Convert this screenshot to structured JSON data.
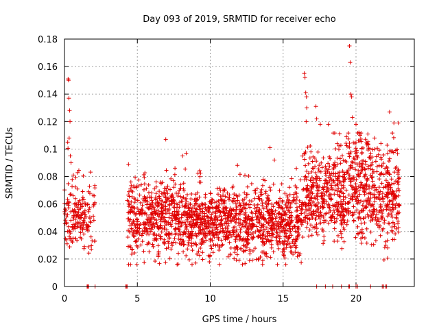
{
  "chart_data": {
    "type": "scatter",
    "title": "Day 093 of 2019, SRMTID for receiver echo",
    "xlabel": "GPS time / hours",
    "ylabel": "SRMTID / TECUs",
    "xlim": [
      0,
      24
    ],
    "ylim": [
      0,
      0.18
    ],
    "xticks": [
      0,
      5,
      10,
      15,
      20
    ],
    "xtick_labels": [
      "0",
      "5",
      "10",
      "15",
      "20"
    ],
    "yticks": [
      0,
      0.02,
      0.04,
      0.06,
      0.08,
      0.1,
      0.12,
      0.14,
      0.16,
      0.18
    ],
    "ytick_labels": [
      "0",
      "0.02",
      "0.04",
      "0.06",
      "0.08",
      "0.1",
      "0.12",
      "0.14",
      "0.16",
      "0.18"
    ],
    "grid": true,
    "marker": "+",
    "color": "#e00000",
    "series": [
      {
        "name": "SRMTID",
        "segments": [
          {
            "start": 0.0,
            "end": 2.1,
            "mean": 0.05,
            "spread": 0.012,
            "count": 180
          },
          {
            "start": 4.3,
            "end": 8.5,
            "mean": 0.05,
            "spread": 0.013,
            "count": 520
          },
          {
            "start": 8.5,
            "end": 12.0,
            "mean": 0.047,
            "spread": 0.012,
            "count": 480
          },
          {
            "start": 12.0,
            "end": 16.3,
            "mean": 0.045,
            "spread": 0.013,
            "count": 560
          },
          {
            "start": 16.3,
            "end": 19.3,
            "mean": 0.065,
            "spread": 0.016,
            "count": 400
          },
          {
            "start": 19.3,
            "end": 21.0,
            "mean": 0.075,
            "spread": 0.018,
            "count": 240
          },
          {
            "start": 21.0,
            "end": 23.0,
            "mean": 0.065,
            "spread": 0.017,
            "count": 260
          }
        ],
        "outliers": [
          {
            "x": 0.25,
            "y": 0.151
          },
          {
            "x": 0.28,
            "y": 0.15
          },
          {
            "x": 0.3,
            "y": 0.137
          },
          {
            "x": 0.35,
            "y": 0.128
          },
          {
            "x": 0.38,
            "y": 0.12
          },
          {
            "x": 0.32,
            "y": 0.108
          },
          {
            "x": 0.22,
            "y": 0.105
          },
          {
            "x": 0.4,
            "y": 0.095
          },
          {
            "x": 0.45,
            "y": 0.09
          },
          {
            "x": 6.95,
            "y": 0.107
          },
          {
            "x": 8.1,
            "y": 0.095
          },
          {
            "x": 8.35,
            "y": 0.097
          },
          {
            "x": 14.1,
            "y": 0.101
          },
          {
            "x": 14.4,
            "y": 0.092
          },
          {
            "x": 16.45,
            "y": 0.155
          },
          {
            "x": 16.5,
            "y": 0.152
          },
          {
            "x": 16.55,
            "y": 0.141
          },
          {
            "x": 16.6,
            "y": 0.138
          },
          {
            "x": 16.62,
            "y": 0.13
          },
          {
            "x": 16.58,
            "y": 0.12
          },
          {
            "x": 17.25,
            "y": 0.131
          },
          {
            "x": 17.3,
            "y": 0.122
          },
          {
            "x": 17.55,
            "y": 0.118
          },
          {
            "x": 18.1,
            "y": 0.118
          },
          {
            "x": 19.55,
            "y": 0.175
          },
          {
            "x": 19.6,
            "y": 0.163
          },
          {
            "x": 19.65,
            "y": 0.14
          },
          {
            "x": 19.7,
            "y": 0.138
          },
          {
            "x": 19.75,
            "y": 0.123
          },
          {
            "x": 20.0,
            "y": 0.118
          },
          {
            "x": 20.2,
            "y": 0.112
          },
          {
            "x": 22.3,
            "y": 0.127
          },
          {
            "x": 22.6,
            "y": 0.119
          },
          {
            "x": 22.9,
            "y": 0.119
          }
        ],
        "zeros": [
          1.55,
          1.6,
          1.65,
          2.1,
          4.2,
          4.25,
          4.3,
          17.3,
          17.9,
          18.4,
          19.0,
          19.5,
          19.55,
          20.0,
          20.1,
          21.0,
          21.8,
          21.9,
          22.0,
          22.1
        ]
      }
    ]
  }
}
